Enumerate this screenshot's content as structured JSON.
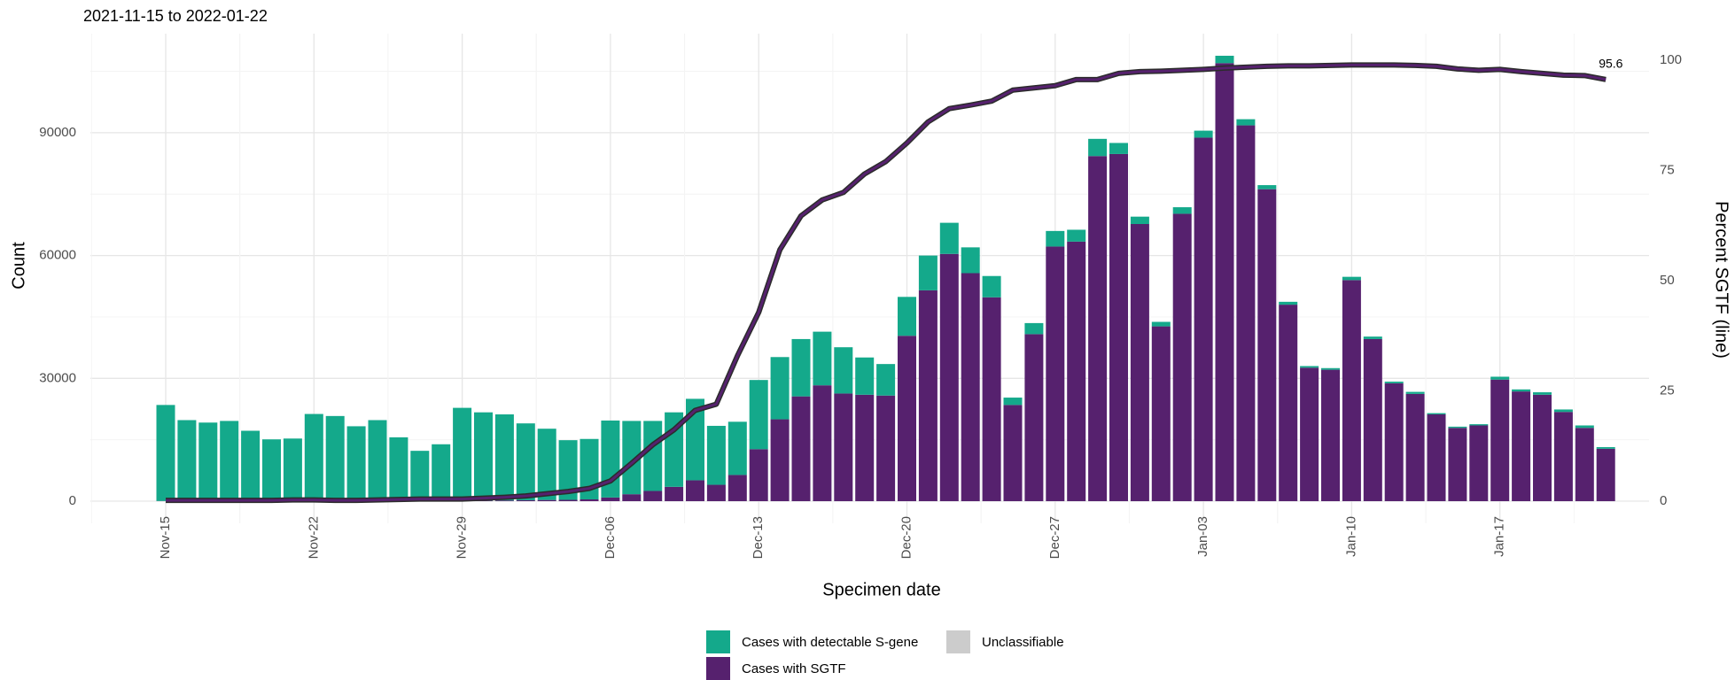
{
  "chart_data": {
    "type": "bar",
    "subtitle": "2021-11-15 to 2022-01-22",
    "x_label": "Specimen date",
    "y_label": "Count",
    "y2_label": "Percent SGTF (line)",
    "categories": [
      "Nov-15",
      null,
      null,
      null,
      null,
      null,
      null,
      "Nov-22",
      null,
      null,
      null,
      null,
      null,
      null,
      "Nov-29",
      null,
      null,
      null,
      null,
      null,
      null,
      "Dec-06",
      null,
      null,
      null,
      null,
      null,
      null,
      "Dec-13",
      null,
      null,
      null,
      null,
      null,
      null,
      "Dec-20",
      null,
      null,
      null,
      null,
      null,
      null,
      "Dec-27",
      null,
      null,
      null,
      null,
      null,
      null,
      "Jan-03",
      null,
      null,
      null,
      null,
      null,
      null,
      "Jan-10",
      null,
      null,
      null,
      null,
      null,
      null,
      "Jan-17",
      null,
      null,
      null,
      null,
      null
    ],
    "series": [
      {
        "name": "Cases with SGTF",
        "color": "#56216e",
        "values": [
          50,
          40,
          40,
          40,
          30,
          30,
          50,
          60,
          40,
          40,
          60,
          60,
          60,
          70,
          110,
          150,
          190,
          230,
          300,
          330,
          440,
          900,
          1700,
          2500,
          3500,
          5100,
          4000,
          6400,
          12700,
          20000,
          25600,
          28300,
          26300,
          26000,
          25800,
          40400,
          51500,
          60400,
          55700,
          49800,
          23500,
          40800,
          62200,
          63400,
          84300,
          84800,
          67700,
          42700,
          70200,
          88800,
          107000,
          91800,
          76200,
          48000,
          32600,
          32100,
          54000,
          39600,
          28800,
          26200,
          21200,
          17900,
          18500,
          29700,
          26800,
          26000,
          21800,
          17900,
          12800
        ]
      },
      {
        "name": "Cases with detectable S-gene",
        "color": "#14a98b",
        "values": [
          23450,
          19760,
          19160,
          19560,
          17170,
          15070,
          15250,
          21240,
          20760,
          18260,
          19740,
          15540,
          12240,
          13830,
          22690,
          21550,
          21010,
          18770,
          17400,
          14570,
          14760,
          18800,
          17900,
          17100,
          18200,
          19900,
          14400,
          13000,
          16900,
          15200,
          14000,
          13100,
          11300,
          9100,
          7700,
          9500,
          8500,
          7600,
          6300,
          5200,
          1800,
          2700,
          3800,
          2900,
          4200,
          2700,
          1800,
          1100,
          1600,
          1700,
          1800,
          1500,
          1000,
          700,
          400,
          400,
          800,
          600,
          400,
          500,
          300,
          300,
          300,
          700,
          500,
          600,
          600,
          600,
          400
        ]
      },
      {
        "name": "Unclassifiable",
        "color": "#cccccc",
        "values": [
          0,
          0,
          0,
          0,
          0,
          0,
          0,
          0,
          0,
          0,
          0,
          0,
          0,
          0,
          0,
          0,
          0,
          0,
          0,
          0,
          0,
          0,
          0,
          0,
          0,
          0,
          0,
          0,
          0,
          0,
          0,
          0,
          0,
          0,
          0,
          0,
          0,
          0,
          0,
          0,
          0,
          0,
          0,
          0,
          0,
          0,
          0,
          0,
          0,
          0,
          0,
          0,
          0,
          0,
          0,
          0,
          0,
          0,
          0,
          0,
          0,
          0,
          0,
          0,
          0,
          0,
          0,
          0,
          0
        ]
      },
      {
        "type": "line",
        "axis": "y2",
        "color": "#56216e",
        "values": [
          0.2,
          0.2,
          0.2,
          0.2,
          0.2,
          0.2,
          0.3,
          0.3,
          0.2,
          0.2,
          0.3,
          0.4,
          0.5,
          0.5,
          0.5,
          0.7,
          0.9,
          1.2,
          1.7,
          2.2,
          2.9,
          4.6,
          8.6,
          12.8,
          16.2,
          20.6,
          22.0,
          33.0,
          42.8,
          57.0,
          64.7,
          68.3,
          70.0,
          74.2,
          77.0,
          81.2,
          86.0,
          89.0,
          89.8,
          90.7,
          93.2,
          93.7,
          94.2,
          95.6,
          95.6,
          97.0,
          97.4,
          97.5,
          97.7,
          97.9,
          98.2,
          98.4,
          98.6,
          98.7,
          98.7,
          98.8,
          98.9,
          98.9,
          98.9,
          98.8,
          98.6,
          98.0,
          97.7,
          97.9,
          97.4,
          97.0,
          96.6,
          96.5,
          95.6
        ]
      }
    ],
    "ylim": [
      -5400,
      114200
    ],
    "yticks": [
      0,
      30000,
      60000,
      90000
    ],
    "y2lim": [
      -5,
      106
    ],
    "y2ticks": [
      0,
      25,
      50,
      75,
      100
    ],
    "grid": true
  }
}
